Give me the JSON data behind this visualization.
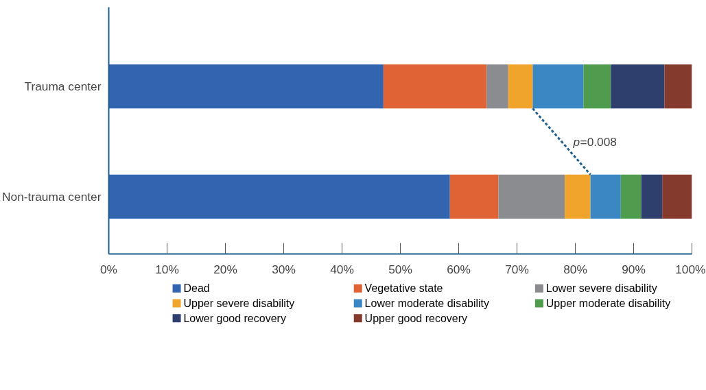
{
  "chart_data": {
    "type": "bar",
    "orientation": "horizontal",
    "stacked": true,
    "categories": [
      "Trauma center",
      "Non-trauma center"
    ],
    "series": [
      {
        "name": "Dead",
        "color": "#3264b0",
        "values": [
          47.1,
          58.5
        ]
      },
      {
        "name": "Vegetative state",
        "color": "#e06336",
        "values": [
          17.7,
          8.3
        ]
      },
      {
        "name": "Lower severe disability",
        "color": "#8b8c90",
        "values": [
          3.7,
          11.4
        ]
      },
      {
        "name": "Upper severe disability",
        "color": "#f1a42b",
        "values": [
          4.2,
          4.4
        ]
      },
      {
        "name": "Lower moderate disability",
        "color": "#3a87c4",
        "values": [
          8.7,
          5.2
        ]
      },
      {
        "name": "Upper moderate disability",
        "color": "#4f9c4e",
        "values": [
          4.7,
          3.5
        ]
      },
      {
        "name": "Lower good recovery",
        "color": "#2e3f6e",
        "values": [
          9.2,
          3.6
        ]
      },
      {
        "name": "Upper good recovery",
        "color": "#843a2d",
        "values": [
          4.7,
          5.1
        ]
      }
    ],
    "xlim": [
      0,
      100
    ],
    "xticks": [
      {
        "value": 0,
        "label": "0%"
      },
      {
        "value": 10,
        "label": "10%"
      },
      {
        "value": 20,
        "label": "20%"
      },
      {
        "value": 30,
        "label": "30%"
      },
      {
        "value": 40,
        "label": "40%"
      },
      {
        "value": 50,
        "label": "50%"
      },
      {
        "value": 60,
        "label": "60%"
      },
      {
        "value": 70,
        "label": "70%"
      },
      {
        "value": 80,
        "label": "80%"
      },
      {
        "value": 90,
        "label": "90%"
      },
      {
        "value": 100,
        "label": "100%"
      }
    ],
    "annotations": [
      "p=0.008"
    ],
    "grid": false,
    "legend": "bottom"
  }
}
